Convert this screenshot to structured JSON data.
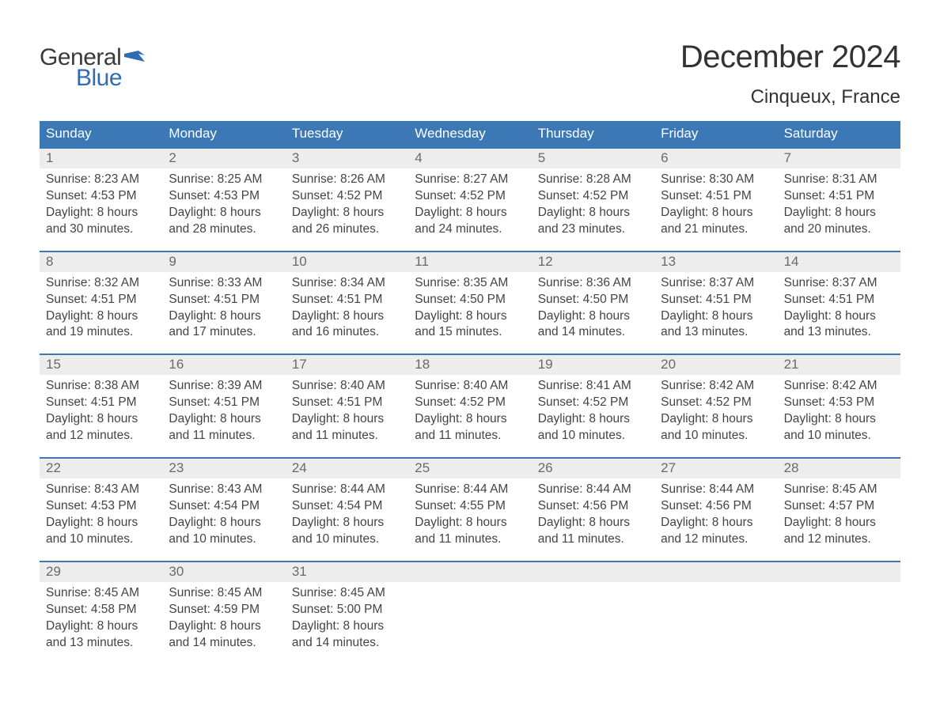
{
  "logo": {
    "word1": "General",
    "word2": "Blue",
    "flag_color": "#2f6db0"
  },
  "title": "December 2024",
  "location": "Cinqueux, France",
  "colors": {
    "header_bg": "#3b78b5",
    "header_text": "#ffffff",
    "daynum_bg": "#ededed",
    "daynum_text": "#6a6a6a",
    "body_text": "#444444",
    "rule": "#3b78b5"
  },
  "weekdays": [
    "Sunday",
    "Monday",
    "Tuesday",
    "Wednesday",
    "Thursday",
    "Friday",
    "Saturday"
  ],
  "labels": {
    "sunrise": "Sunrise:",
    "sunset": "Sunset:",
    "daylight": "Daylight:"
  },
  "days": [
    {
      "n": 1,
      "sunrise": "8:23 AM",
      "sunset": "4:53 PM",
      "daylight": "8 hours and 30 minutes."
    },
    {
      "n": 2,
      "sunrise": "8:25 AM",
      "sunset": "4:53 PM",
      "daylight": "8 hours and 28 minutes."
    },
    {
      "n": 3,
      "sunrise": "8:26 AM",
      "sunset": "4:52 PM",
      "daylight": "8 hours and 26 minutes."
    },
    {
      "n": 4,
      "sunrise": "8:27 AM",
      "sunset": "4:52 PM",
      "daylight": "8 hours and 24 minutes."
    },
    {
      "n": 5,
      "sunrise": "8:28 AM",
      "sunset": "4:52 PM",
      "daylight": "8 hours and 23 minutes."
    },
    {
      "n": 6,
      "sunrise": "8:30 AM",
      "sunset": "4:51 PM",
      "daylight": "8 hours and 21 minutes."
    },
    {
      "n": 7,
      "sunrise": "8:31 AM",
      "sunset": "4:51 PM",
      "daylight": "8 hours and 20 minutes."
    },
    {
      "n": 8,
      "sunrise": "8:32 AM",
      "sunset": "4:51 PM",
      "daylight": "8 hours and 19 minutes."
    },
    {
      "n": 9,
      "sunrise": "8:33 AM",
      "sunset": "4:51 PM",
      "daylight": "8 hours and 17 minutes."
    },
    {
      "n": 10,
      "sunrise": "8:34 AM",
      "sunset": "4:51 PM",
      "daylight": "8 hours and 16 minutes."
    },
    {
      "n": 11,
      "sunrise": "8:35 AM",
      "sunset": "4:50 PM",
      "daylight": "8 hours and 15 minutes."
    },
    {
      "n": 12,
      "sunrise": "8:36 AM",
      "sunset": "4:50 PM",
      "daylight": "8 hours and 14 minutes."
    },
    {
      "n": 13,
      "sunrise": "8:37 AM",
      "sunset": "4:51 PM",
      "daylight": "8 hours and 13 minutes."
    },
    {
      "n": 14,
      "sunrise": "8:37 AM",
      "sunset": "4:51 PM",
      "daylight": "8 hours and 13 minutes."
    },
    {
      "n": 15,
      "sunrise": "8:38 AM",
      "sunset": "4:51 PM",
      "daylight": "8 hours and 12 minutes."
    },
    {
      "n": 16,
      "sunrise": "8:39 AM",
      "sunset": "4:51 PM",
      "daylight": "8 hours and 11 minutes."
    },
    {
      "n": 17,
      "sunrise": "8:40 AM",
      "sunset": "4:51 PM",
      "daylight": "8 hours and 11 minutes."
    },
    {
      "n": 18,
      "sunrise": "8:40 AM",
      "sunset": "4:52 PM",
      "daylight": "8 hours and 11 minutes."
    },
    {
      "n": 19,
      "sunrise": "8:41 AM",
      "sunset": "4:52 PM",
      "daylight": "8 hours and 10 minutes."
    },
    {
      "n": 20,
      "sunrise": "8:42 AM",
      "sunset": "4:52 PM",
      "daylight": "8 hours and 10 minutes."
    },
    {
      "n": 21,
      "sunrise": "8:42 AM",
      "sunset": "4:53 PM",
      "daylight": "8 hours and 10 minutes."
    },
    {
      "n": 22,
      "sunrise": "8:43 AM",
      "sunset": "4:53 PM",
      "daylight": "8 hours and 10 minutes."
    },
    {
      "n": 23,
      "sunrise": "8:43 AM",
      "sunset": "4:54 PM",
      "daylight": "8 hours and 10 minutes."
    },
    {
      "n": 24,
      "sunrise": "8:44 AM",
      "sunset": "4:54 PM",
      "daylight": "8 hours and 10 minutes."
    },
    {
      "n": 25,
      "sunrise": "8:44 AM",
      "sunset": "4:55 PM",
      "daylight": "8 hours and 11 minutes."
    },
    {
      "n": 26,
      "sunrise": "8:44 AM",
      "sunset": "4:56 PM",
      "daylight": "8 hours and 11 minutes."
    },
    {
      "n": 27,
      "sunrise": "8:44 AM",
      "sunset": "4:56 PM",
      "daylight": "8 hours and 12 minutes."
    },
    {
      "n": 28,
      "sunrise": "8:45 AM",
      "sunset": "4:57 PM",
      "daylight": "8 hours and 12 minutes."
    },
    {
      "n": 29,
      "sunrise": "8:45 AM",
      "sunset": "4:58 PM",
      "daylight": "8 hours and 13 minutes."
    },
    {
      "n": 30,
      "sunrise": "8:45 AM",
      "sunset": "4:59 PM",
      "daylight": "8 hours and 14 minutes."
    },
    {
      "n": 31,
      "sunrise": "8:45 AM",
      "sunset": "5:00 PM",
      "daylight": "8 hours and 14 minutes."
    }
  ]
}
